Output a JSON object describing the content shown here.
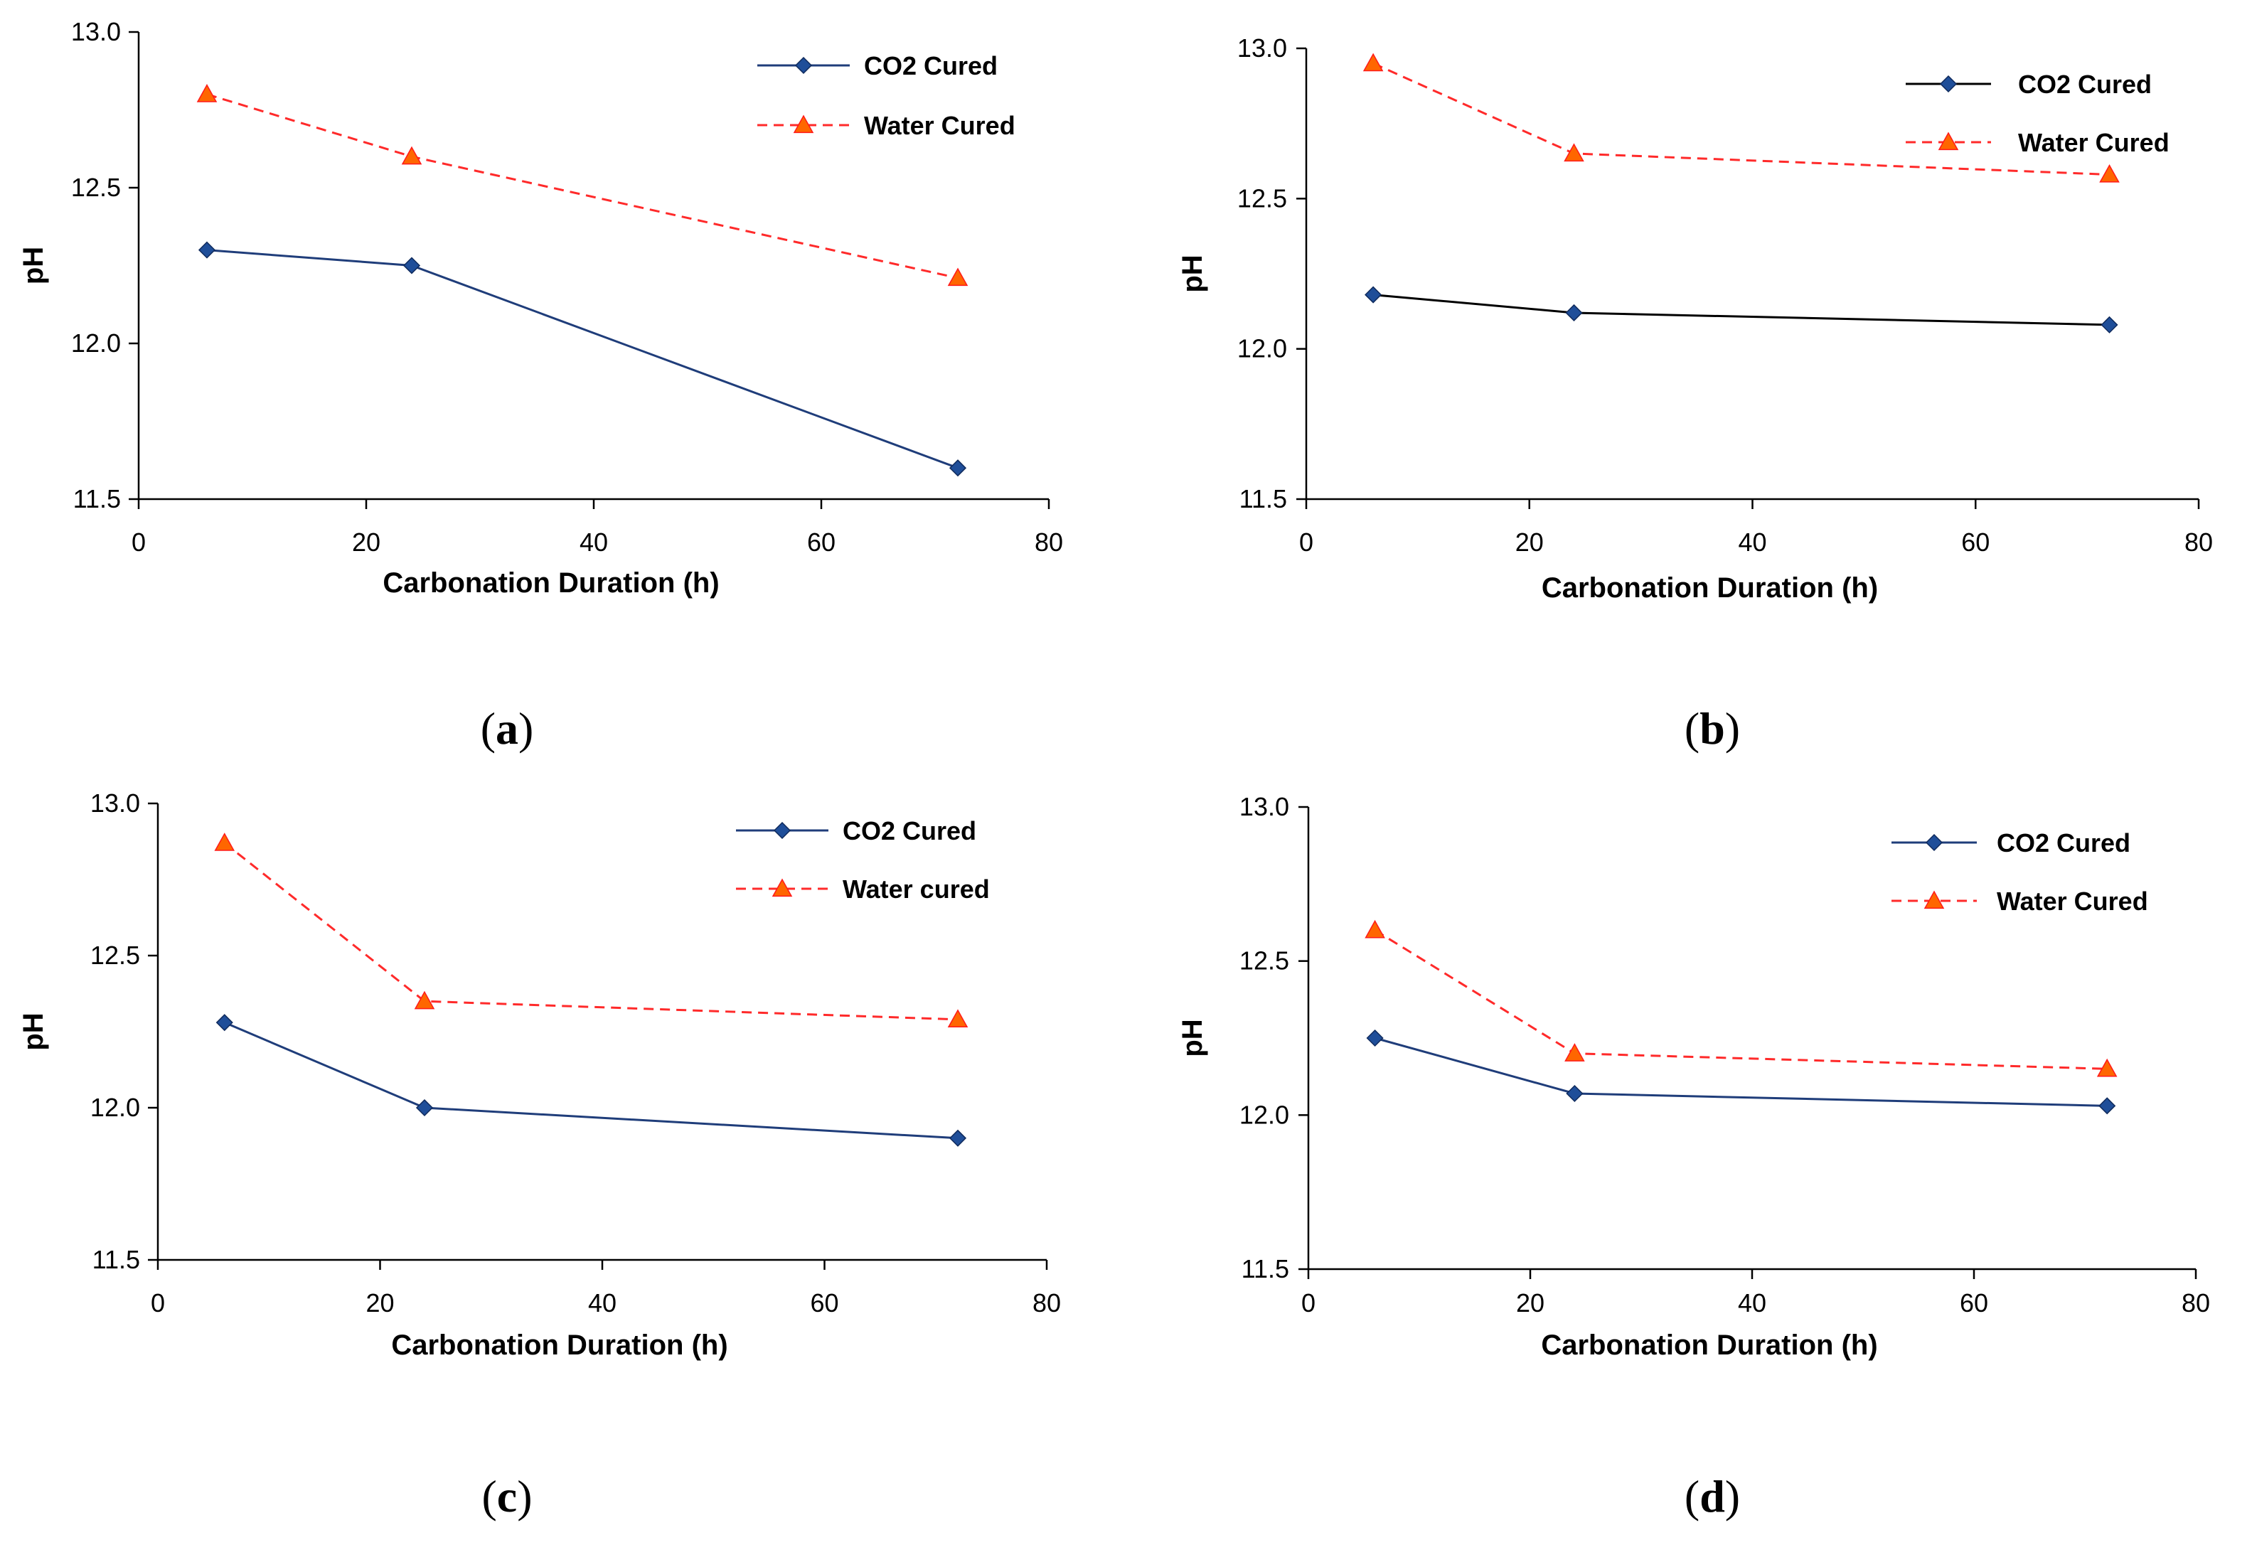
{
  "chart_data": [
    {
      "id": "a",
      "type": "line",
      "caption_prefix": "(",
      "caption_letter": "a",
      "caption_suffix": ")",
      "xlabel": "Carbonation Duration (h)",
      "ylabel": "pH",
      "xlim": [
        0,
        80
      ],
      "ylim": [
        11.5,
        13.0
      ],
      "xticks": [
        "0",
        "20",
        "40",
        "60",
        "80"
      ],
      "yticks": [
        "11.5",
        "12.0",
        "12.5",
        "13.0"
      ],
      "grid": false,
      "legend_position": "top-right",
      "x": [
        6,
        24,
        72
      ],
      "series": [
        {
          "name": "CO2 Cured",
          "values": [
            12.3,
            12.25,
            11.6
          ],
          "color": "#1f3d7a",
          "style": "solid",
          "marker": "diamond",
          "marker_color": "#1f4e99"
        },
        {
          "name": "Water Cured",
          "values": [
            12.8,
            12.6,
            12.21
          ],
          "color": "#ff2a2a",
          "style": "dashed",
          "marker": "triangle",
          "marker_color": "#ff6600"
        }
      ]
    },
    {
      "id": "b",
      "type": "line",
      "caption_prefix": "(",
      "caption_letter": "b",
      "caption_suffix": ")",
      "xlabel": "Carbonation Duration (h)",
      "ylabel": "pH",
      "xlim": [
        0,
        80
      ],
      "ylim": [
        11.5,
        13.0
      ],
      "xticks": [
        "0",
        "20",
        "40",
        "60",
        "80"
      ],
      "yticks": [
        "11.5",
        "12.0",
        "12.5",
        "13.0"
      ],
      "grid": false,
      "legend_position": "top-right",
      "x": [
        6,
        24,
        72
      ],
      "series": [
        {
          "name": "CO2 Cured",
          "values": [
            12.18,
            12.12,
            12.08
          ],
          "color": "#000000",
          "style": "solid",
          "marker": "diamond",
          "marker_color": "#1f4e99"
        },
        {
          "name": "Water Cured",
          "values": [
            12.95,
            12.65,
            12.58
          ],
          "color": "#ff2a2a",
          "style": "dashed",
          "marker": "triangle",
          "marker_color": "#ff6600"
        }
      ]
    },
    {
      "id": "c",
      "type": "line",
      "caption_prefix": "(",
      "caption_letter": "c",
      "caption_suffix": ")",
      "xlabel": "Carbonation Duration (h)",
      "ylabel": "pH",
      "xlim": [
        0,
        80
      ],
      "ylim": [
        11.5,
        13.0
      ],
      "xticks": [
        "0",
        "20",
        "40",
        "60",
        "80"
      ],
      "yticks": [
        "11.5",
        "12.0",
        "12.5",
        "13.0"
      ],
      "grid": false,
      "legend_position": "top-right",
      "x": [
        6,
        24,
        72
      ],
      "series": [
        {
          "name": "CO2 Cured",
          "values": [
            12.28,
            12.0,
            11.9
          ],
          "color": "#1f3d7a",
          "style": "solid",
          "marker": "diamond",
          "marker_color": "#1f4e99"
        },
        {
          "name": "Water cured",
          "values": [
            12.87,
            12.35,
            12.29
          ],
          "color": "#ff2a2a",
          "style": "dashed",
          "marker": "triangle",
          "marker_color": "#ff6600"
        }
      ]
    },
    {
      "id": "d",
      "type": "line",
      "caption_prefix": "(",
      "caption_letter": "d",
      "caption_suffix": ")",
      "xlabel": "Carbonation Duration (h)",
      "ylabel": "pH",
      "xlim": [
        0,
        80
      ],
      "ylim": [
        11.5,
        13.0
      ],
      "xticks": [
        "0",
        "20",
        "40",
        "60",
        "80"
      ],
      "yticks": [
        "11.5",
        "12.0",
        "12.5",
        "13.0"
      ],
      "grid": false,
      "legend_position": "top-right",
      "x": [
        6,
        24,
        72
      ],
      "series": [
        {
          "name": "CO2 Cured",
          "values": [
            12.25,
            12.07,
            12.03
          ],
          "color": "#1f3d7a",
          "style": "solid",
          "marker": "diamond",
          "marker_color": "#1f4e99"
        },
        {
          "name": "Water Cured",
          "values": [
            12.6,
            12.2,
            12.15
          ],
          "color": "#ff2a2a",
          "style": "dashed",
          "marker": "triangle",
          "marker_color": "#ff6600"
        }
      ]
    }
  ]
}
